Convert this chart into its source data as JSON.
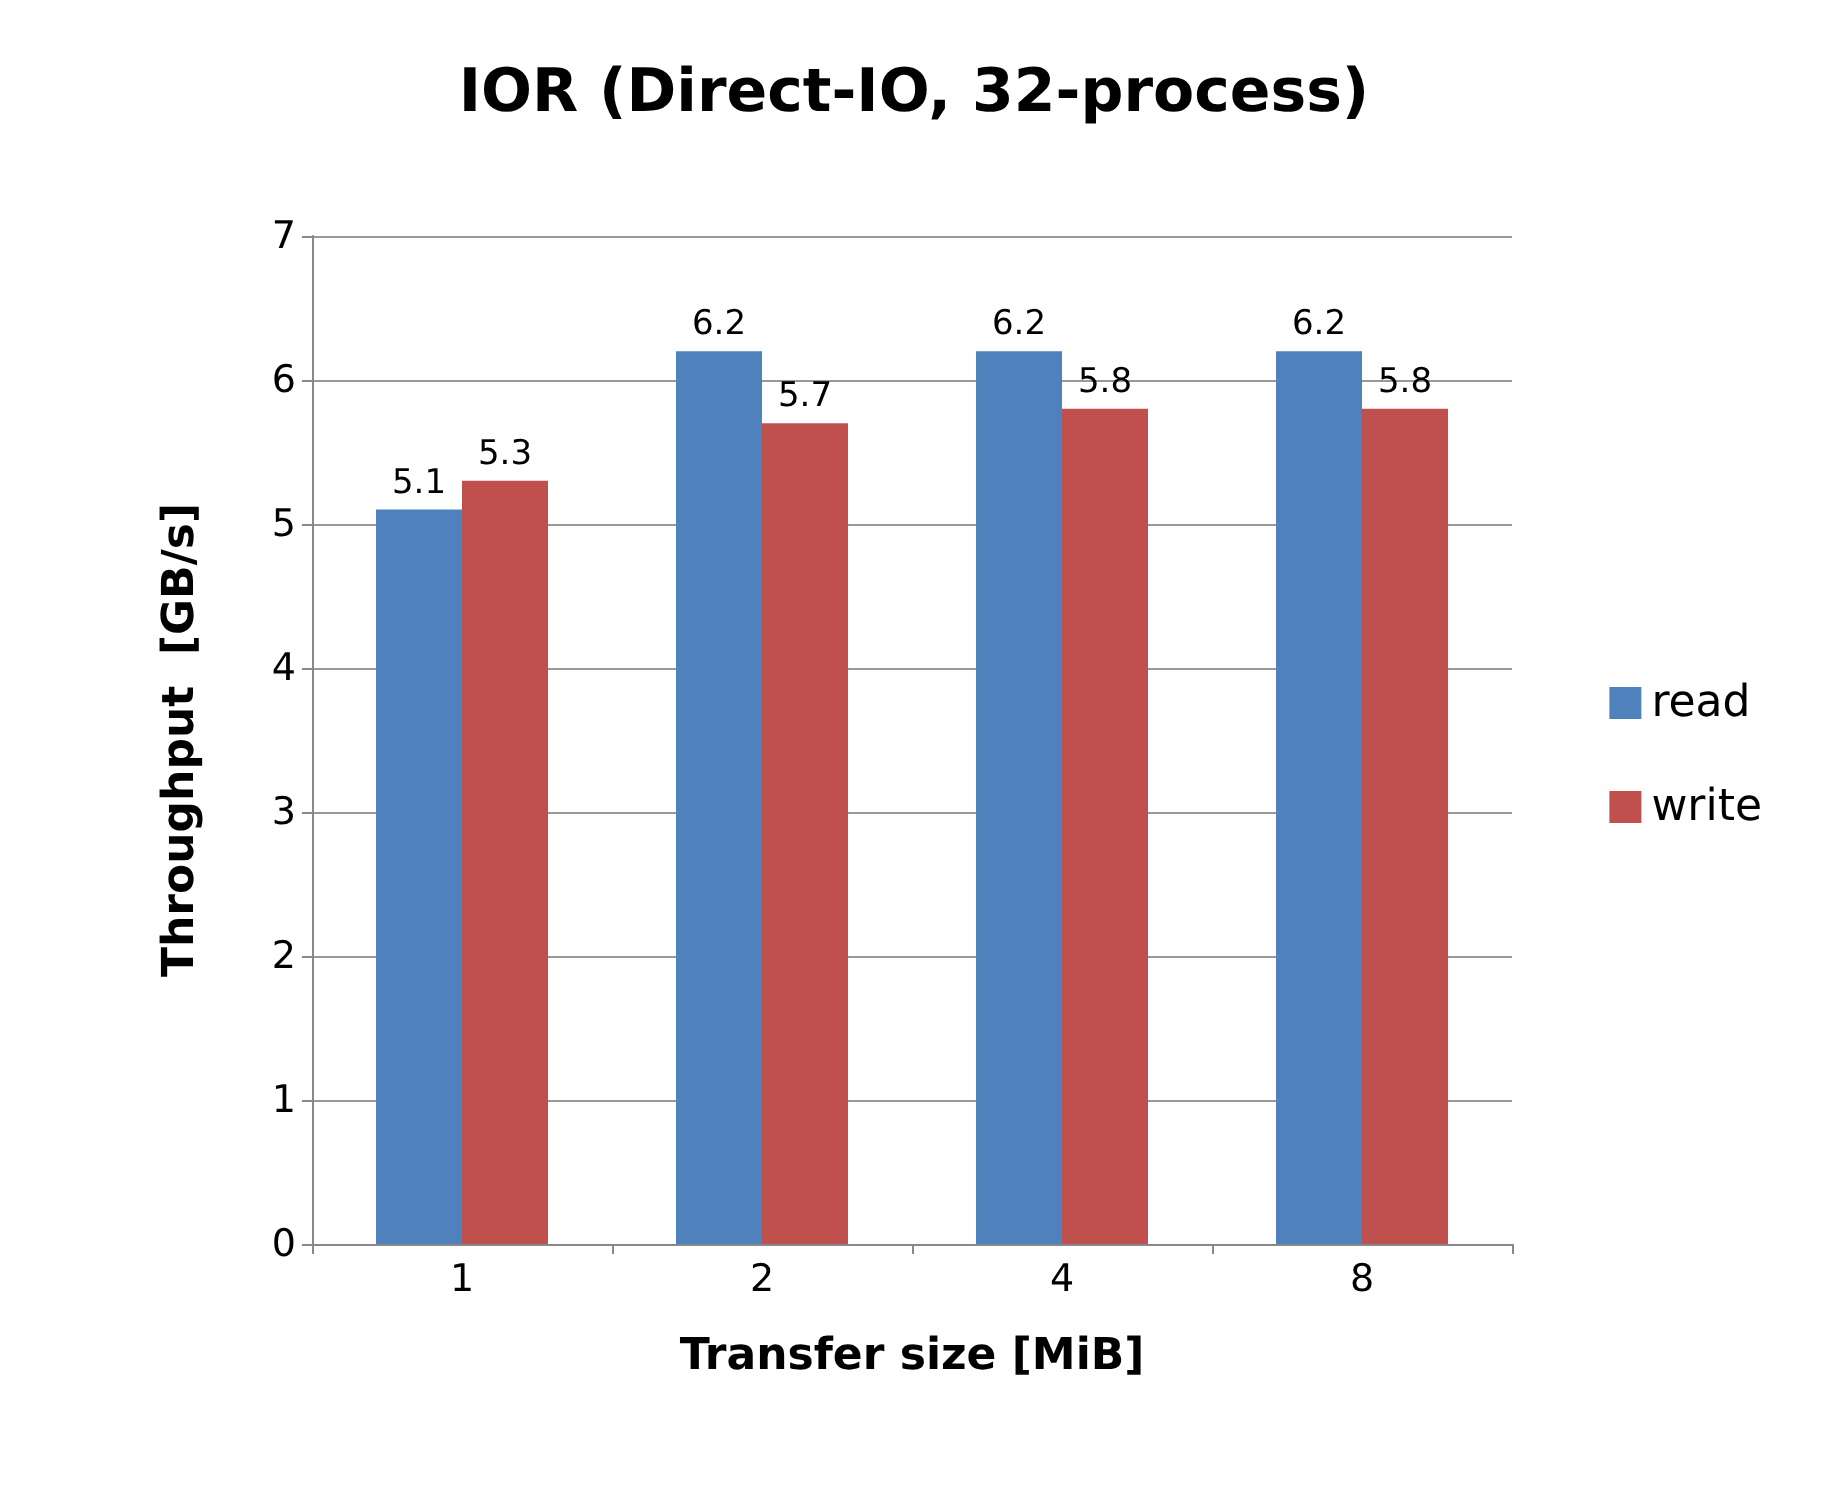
{
  "chart_data": {
    "type": "bar",
    "title": "IOR (Direct-IO, 32-process)",
    "xlabel": "Transfer size [MiB]",
    "ylabel": "Throughput  [GB/s]",
    "categories": [
      "1",
      "2",
      "4",
      "8"
    ],
    "series": [
      {
        "name": "read",
        "color": "#4f81bd",
        "values": [
          5.1,
          6.2,
          6.2,
          6.2
        ]
      },
      {
        "name": "write",
        "color": "#c0504d",
        "values": [
          5.3,
          5.7,
          5.8,
          5.8
        ]
      }
    ],
    "ylim": [
      0,
      7
    ],
    "yticks": [
      0,
      1,
      2,
      3,
      4,
      5,
      6,
      7
    ],
    "grid": "y",
    "legend": "right",
    "data_labels": true
  }
}
